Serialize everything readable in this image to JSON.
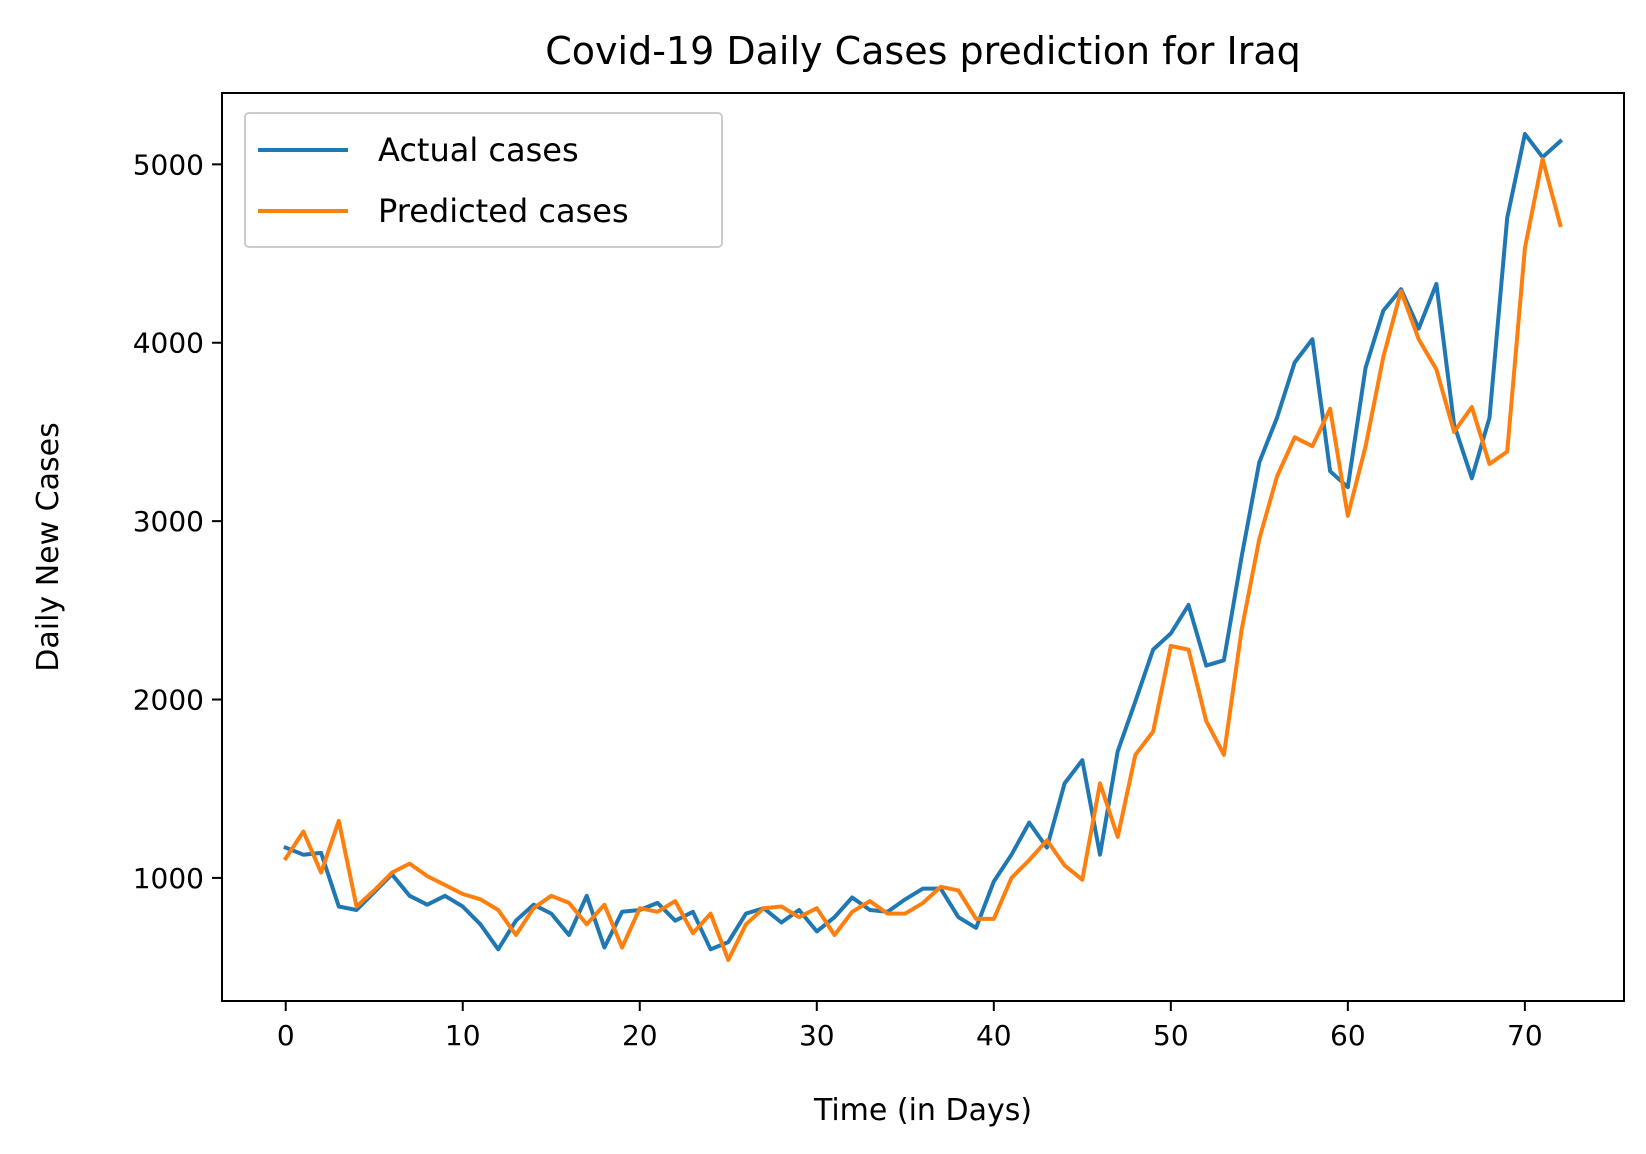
{
  "chart_data": {
    "type": "line",
    "title": "Covid-19 Daily Cases prediction for Iraq",
    "xlabel": "Time (in Days)",
    "ylabel": "Daily New Cases",
    "xlim": [
      -3.6,
      75.6
    ],
    "ylim": [
      310,
      5400
    ],
    "xticks": [
      0,
      10,
      20,
      30,
      40,
      50,
      60,
      70
    ],
    "yticks": [
      1000,
      2000,
      3000,
      4000,
      5000
    ],
    "grid": false,
    "legend_position": "upper-left",
    "series": [
      {
        "name": "Actual cases",
        "color": "#1f77b4",
        "x": [
          0,
          1,
          2,
          3,
          4,
          5,
          6,
          7,
          8,
          9,
          10,
          11,
          12,
          13,
          14,
          15,
          16,
          17,
          18,
          19,
          20,
          21,
          22,
          23,
          24,
          25,
          26,
          27,
          28,
          29,
          30,
          31,
          32,
          33,
          34,
          35,
          36,
          37,
          38,
          39,
          40,
          41,
          42,
          43,
          44,
          45,
          46,
          47,
          48,
          49,
          50,
          51,
          52,
          53,
          54,
          55,
          56,
          57,
          58,
          59,
          60,
          61,
          62,
          63,
          64,
          65,
          66,
          67,
          68,
          69,
          70,
          71,
          72
        ],
        "values": [
          1170,
          1130,
          1140,
          840,
          820,
          920,
          1020,
          900,
          850,
          900,
          840,
          740,
          600,
          760,
          850,
          800,
          680,
          900,
          610,
          810,
          820,
          860,
          760,
          810,
          600,
          640,
          800,
          830,
          750,
          820,
          700,
          780,
          890,
          820,
          810,
          880,
          940,
          940,
          780,
          720,
          980,
          1130,
          1310,
          1170,
          1530,
          1660,
          1130,
          1710,
          1990,
          2280,
          2370,
          2530,
          2190,
          2220,
          2800,
          3330,
          3580,
          3890,
          4020,
          3280,
          3190,
          3860,
          4180,
          4300,
          4080,
          4330,
          3540,
          3240,
          3580,
          4700,
          5170,
          5040,
          5130
        ]
      },
      {
        "name": "Predicted cases",
        "color": "#ff7f0e",
        "x": [
          0,
          1,
          2,
          3,
          4,
          5,
          6,
          7,
          8,
          9,
          10,
          11,
          12,
          13,
          14,
          15,
          16,
          17,
          18,
          19,
          20,
          21,
          22,
          23,
          24,
          25,
          26,
          27,
          28,
          29,
          30,
          31,
          32,
          33,
          34,
          35,
          36,
          37,
          38,
          39,
          40,
          41,
          42,
          43,
          44,
          45,
          46,
          47,
          48,
          49,
          50,
          51,
          52,
          53,
          54,
          55,
          56,
          57,
          58,
          59,
          60,
          61,
          62,
          63,
          64,
          65,
          66,
          67,
          68,
          69,
          70,
          71,
          72
        ],
        "values": [
          1110,
          1260,
          1030,
          1320,
          840,
          930,
          1030,
          1080,
          1010,
          960,
          910,
          880,
          820,
          680,
          830,
          900,
          860,
          740,
          850,
          610,
          830,
          810,
          870,
          690,
          800,
          540,
          740,
          830,
          840,
          780,
          830,
          680,
          810,
          870,
          800,
          800,
          860,
          950,
          930,
          770,
          770,
          1000,
          1100,
          1210,
          1070,
          990,
          1530,
          1230,
          1690,
          1820,
          2300,
          2280,
          1880,
          1690,
          2390,
          2900,
          3250,
          3470,
          3420,
          3630,
          3030,
          3420,
          3920,
          4290,
          4020,
          3850,
          3500,
          3640,
          3320,
          3390,
          4530,
          5030,
          4660
        ]
      }
    ]
  }
}
